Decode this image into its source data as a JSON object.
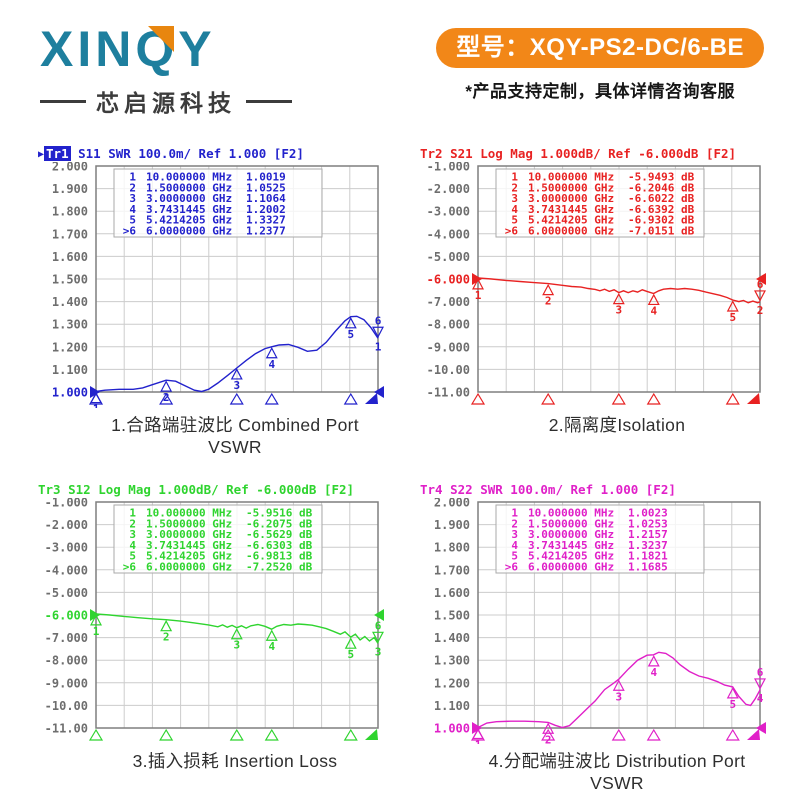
{
  "header": {
    "logo_text": "XINQY",
    "logo_subtitle": "芯启源科技",
    "model_badge": "型号：XQY-PS2-DC/6-BE",
    "note": "*产品支持定制，具体详情咨询客服"
  },
  "colors": {
    "logo_teal": "#1e7f9e",
    "logo_accent_orange": "#e8860f",
    "badge_orange": "#f28718",
    "trace1_blue": "#2222cc",
    "trace2_red": "#e82222",
    "trace3_green": "#2fd42f",
    "trace4_magenta": "#e020c8",
    "axis_label_gray": "#6e6e6e",
    "grid_gray": "#cccccc"
  },
  "chart_data": [
    {
      "type": "line",
      "header": {
        "active": true,
        "trace_label": "Tr1",
        "text": " S11 SWR 100.0m/ Ref 1.000 [F2]"
      },
      "caption": "1.合路端驻波比 Combined Port VSWR",
      "color": "#2222cc",
      "trace_number": "1",
      "x_range_ghz": [
        0.01,
        6
      ],
      "ylim": [
        1.0,
        2.0
      ],
      "ref_value": 1.0,
      "ref_index": 10,
      "y_ticks": [
        "2.000",
        "1.900",
        "1.800",
        "1.700",
        "1.600",
        "1.500",
        "1.400",
        "1.300",
        "1.200",
        "1.100",
        "1.000"
      ],
      "markers": [
        {
          "n": "1",
          "freq": "10.000000 MHz",
          "val": "1.0019",
          "f": 0.01,
          "y": 1.0019
        },
        {
          "n": "2",
          "freq": "1.5000000 GHz",
          "val": "1.0525",
          "f": 1.5,
          "y": 1.0525
        },
        {
          "n": "3",
          "freq": "3.0000000 GHz",
          "val": "1.1064",
          "f": 3.0,
          "y": 1.1064
        },
        {
          "n": "4",
          "freq": "3.7431445 GHz",
          "val": "1.2002",
          "f": 3.7431445,
          "y": 1.2002
        },
        {
          "n": "5",
          "freq": "5.4214205 GHz",
          "val": "1.3327",
          "f": 5.4214205,
          "y": 1.3327
        },
        {
          "n": ">6",
          "freq": "6.0000000 GHz",
          "val": "1.2377",
          "f": 6.0,
          "y": 1.2377
        }
      ],
      "points": [
        [
          0.01,
          1.002
        ],
        [
          0.2,
          1.008
        ],
        [
          0.5,
          1.012
        ],
        [
          0.8,
          1.012
        ],
        [
          1.0,
          1.018
        ],
        [
          1.2,
          1.032
        ],
        [
          1.5,
          1.052
        ],
        [
          1.7,
          1.048
        ],
        [
          1.9,
          1.028
        ],
        [
          2.1,
          1.008
        ],
        [
          2.25,
          1.002
        ],
        [
          2.4,
          1.012
        ],
        [
          2.6,
          1.04
        ],
        [
          2.8,
          1.072
        ],
        [
          3.0,
          1.106
        ],
        [
          3.2,
          1.14
        ],
        [
          3.4,
          1.17
        ],
        [
          3.6,
          1.192
        ],
        [
          3.74,
          1.2
        ],
        [
          3.9,
          1.208
        ],
        [
          4.1,
          1.21
        ],
        [
          4.3,
          1.198
        ],
        [
          4.5,
          1.18
        ],
        [
          4.7,
          1.185
        ],
        [
          4.9,
          1.22
        ],
        [
          5.1,
          1.27
        ],
        [
          5.3,
          1.315
        ],
        [
          5.42,
          1.333
        ],
        [
          5.55,
          1.335
        ],
        [
          5.7,
          1.32
        ],
        [
          5.85,
          1.285
        ],
        [
          6.0,
          1.238
        ]
      ]
    },
    {
      "type": "line",
      "header": {
        "active": false,
        "trace_label": "Tr2",
        "text": " S21 Log Mag 1.000dB/ Ref -6.000dB [F2]"
      },
      "caption": "2.隔离度Isolation",
      "color": "#e82222",
      "trace_number": "2",
      "x_range_ghz": [
        0.01,
        6
      ],
      "ylim": [
        -11.0,
        -1.0
      ],
      "ref_value": -6.0,
      "ref_index": 5,
      "y_ticks": [
        "-1.000",
        "-2.000",
        "-3.000",
        "-4.000",
        "-5.000",
        "-6.000",
        "-7.000",
        "-8.000",
        "-9.000",
        "-10.00",
        "-11.00"
      ],
      "markers": [
        {
          "n": "1",
          "freq": "10.000000 MHz",
          "val": "-5.9493 dB",
          "f": 0.01,
          "y": -5.9493
        },
        {
          "n": "2",
          "freq": "1.5000000 GHz",
          "val": "-6.2046 dB",
          "f": 1.5,
          "y": -6.2046
        },
        {
          "n": "3",
          "freq": "3.0000000 GHz",
          "val": "-6.6022 dB",
          "f": 3.0,
          "y": -6.6022
        },
        {
          "n": "4",
          "freq": "3.7431445 GHz",
          "val": "-6.6392 dB",
          "f": 3.7431445,
          "y": -6.6392
        },
        {
          "n": "5",
          "freq": "5.4214205 GHz",
          "val": "-6.9302 dB",
          "f": 5.4214205,
          "y": -6.9302
        },
        {
          "n": ">6",
          "freq": "6.0000000 GHz",
          "val": "-7.0151 dB",
          "f": 6.0,
          "y": -7.0151
        }
      ],
      "points": [
        [
          0.01,
          -5.95
        ],
        [
          0.3,
          -6.0
        ],
        [
          0.6,
          -6.06
        ],
        [
          0.9,
          -6.11
        ],
        [
          1.2,
          -6.16
        ],
        [
          1.5,
          -6.205
        ],
        [
          1.8,
          -6.28
        ],
        [
          2.0,
          -6.33
        ],
        [
          2.2,
          -6.36
        ],
        [
          2.35,
          -6.42
        ],
        [
          2.5,
          -6.46
        ],
        [
          2.6,
          -6.52
        ],
        [
          2.7,
          -6.45
        ],
        [
          2.8,
          -6.55
        ],
        [
          2.9,
          -6.48
        ],
        [
          3.0,
          -6.6
        ],
        [
          3.1,
          -6.52
        ],
        [
          3.2,
          -6.6
        ],
        [
          3.3,
          -6.52
        ],
        [
          3.4,
          -6.58
        ],
        [
          3.5,
          -6.48
        ],
        [
          3.6,
          -6.55
        ],
        [
          3.74,
          -6.64
        ],
        [
          3.85,
          -6.52
        ],
        [
          3.95,
          -6.45
        ],
        [
          4.1,
          -6.42
        ],
        [
          4.25,
          -6.45
        ],
        [
          4.4,
          -6.42
        ],
        [
          4.55,
          -6.45
        ],
        [
          4.7,
          -6.5
        ],
        [
          4.85,
          -6.58
        ],
        [
          5.0,
          -6.65
        ],
        [
          5.15,
          -6.72
        ],
        [
          5.3,
          -6.82
        ],
        [
          5.42,
          -6.93
        ],
        [
          5.55,
          -7.0
        ],
        [
          5.65,
          -6.95
        ],
        [
          5.75,
          -7.05
        ],
        [
          5.85,
          -6.98
        ],
        [
          5.95,
          -7.05
        ],
        [
          6.0,
          -7.015
        ]
      ]
    },
    {
      "type": "line",
      "header": {
        "active": false,
        "trace_label": "Tr3",
        "text": " S12 Log Mag 1.000dB/ Ref -6.000dB [F2]"
      },
      "caption": "3.插入损耗 Insertion Loss",
      "color": "#2fd42f",
      "trace_number": "3",
      "x_range_ghz": [
        0.01,
        6
      ],
      "ylim": [
        -11.0,
        -1.0
      ],
      "ref_value": -6.0,
      "ref_index": 5,
      "y_ticks": [
        "-1.000",
        "-2.000",
        "-3.000",
        "-4.000",
        "-5.000",
        "-6.000",
        "-7.000",
        "-8.000",
        "-9.000",
        "-10.00",
        "-11.00"
      ],
      "markers": [
        {
          "n": "1",
          "freq": "10.000000 MHz",
          "val": "-5.9516 dB",
          "f": 0.01,
          "y": -5.9516
        },
        {
          "n": "2",
          "freq": "1.5000000 GHz",
          "val": "-6.2075 dB",
          "f": 1.5,
          "y": -6.2075
        },
        {
          "n": "3",
          "freq": "3.0000000 GHz",
          "val": "-6.5629 dB",
          "f": 3.0,
          "y": -6.5629
        },
        {
          "n": "4",
          "freq": "3.7431445 GHz",
          "val": "-6.6303 dB",
          "f": 3.7431445,
          "y": -6.6303
        },
        {
          "n": "5",
          "freq": "5.4214205 GHz",
          "val": "-6.9813 dB",
          "f": 5.4214205,
          "y": -6.9813
        },
        {
          "n": ">6",
          "freq": "6.0000000 GHz",
          "val": "-7.2520 dB",
          "f": 6.0,
          "y": -7.252
        }
      ],
      "points": [
        [
          0.01,
          -5.952
        ],
        [
          0.3,
          -6.0
        ],
        [
          0.6,
          -6.06
        ],
        [
          0.9,
          -6.12
        ],
        [
          1.2,
          -6.17
        ],
        [
          1.5,
          -6.208
        ],
        [
          1.8,
          -6.27
        ],
        [
          2.1,
          -6.35
        ],
        [
          2.4,
          -6.44
        ],
        [
          2.6,
          -6.52
        ],
        [
          2.7,
          -6.44
        ],
        [
          2.8,
          -6.54
        ],
        [
          2.9,
          -6.46
        ],
        [
          3.0,
          -6.56
        ],
        [
          3.1,
          -6.48
        ],
        [
          3.2,
          -6.58
        ],
        [
          3.3,
          -6.48
        ],
        [
          3.45,
          -6.42
        ],
        [
          3.6,
          -6.5
        ],
        [
          3.74,
          -6.63
        ],
        [
          3.85,
          -6.5
        ],
        [
          4.0,
          -6.42
        ],
        [
          4.15,
          -6.45
        ],
        [
          4.3,
          -6.4
        ],
        [
          4.45,
          -6.42
        ],
        [
          4.6,
          -6.45
        ],
        [
          4.75,
          -6.52
        ],
        [
          4.9,
          -6.6
        ],
        [
          5.05,
          -6.72
        ],
        [
          5.2,
          -6.85
        ],
        [
          5.3,
          -6.75
        ],
        [
          5.42,
          -6.98
        ],
        [
          5.52,
          -6.85
        ],
        [
          5.62,
          -7.1
        ],
        [
          5.72,
          -6.95
        ],
        [
          5.82,
          -7.15
        ],
        [
          5.92,
          -7.0
        ],
        [
          6.0,
          -7.252
        ]
      ]
    },
    {
      "type": "line",
      "header": {
        "active": false,
        "trace_label": "Tr4",
        "text": " S22 SWR 100.0m/ Ref 1.000 [F2]"
      },
      "caption": "4.分配端驻波比 Distribution Port VSWR",
      "color": "#e020c8",
      "trace_number": "4",
      "x_range_ghz": [
        0.01,
        6
      ],
      "ylim": [
        1.0,
        2.0
      ],
      "ref_value": 1.0,
      "ref_index": 10,
      "y_ticks": [
        "2.000",
        "1.900",
        "1.800",
        "1.700",
        "1.600",
        "1.500",
        "1.400",
        "1.300",
        "1.200",
        "1.100",
        "1.000"
      ],
      "markers": [
        {
          "n": "1",
          "freq": "10.000000 MHz",
          "val": "1.0023",
          "f": 0.01,
          "y": 1.0023
        },
        {
          "n": "2",
          "freq": "1.5000000 GHz",
          "val": "1.0253",
          "f": 1.5,
          "y": 1.0253
        },
        {
          "n": "3",
          "freq": "3.0000000 GHz",
          "val": "1.2157",
          "f": 3.0,
          "y": 1.2157
        },
        {
          "n": "4",
          "freq": "3.7431445 GHz",
          "val": "1.3237",
          "f": 3.7431445,
          "y": 1.3237
        },
        {
          "n": "5",
          "freq": "5.4214205 GHz",
          "val": "1.1821",
          "f": 5.4214205,
          "y": 1.1821
        },
        {
          "n": ">6",
          "freq": "6.0000000 GHz",
          "val": "1.1685",
          "f": 6.0,
          "y": 1.1685
        }
      ],
      "points": [
        [
          0.01,
          1.002
        ],
        [
          0.2,
          1.022
        ],
        [
          0.4,
          1.028
        ],
        [
          0.7,
          1.03
        ],
        [
          1.0,
          1.03
        ],
        [
          1.3,
          1.028
        ],
        [
          1.5,
          1.025
        ],
        [
          1.65,
          1.012
        ],
        [
          1.8,
          1.002
        ],
        [
          1.95,
          1.01
        ],
        [
          2.1,
          1.04
        ],
        [
          2.3,
          1.08
        ],
        [
          2.5,
          1.12
        ],
        [
          2.7,
          1.17
        ],
        [
          2.9,
          1.2
        ],
        [
          3.0,
          1.216
        ],
        [
          3.2,
          1.26
        ],
        [
          3.4,
          1.3
        ],
        [
          3.6,
          1.322
        ],
        [
          3.74,
          1.324
        ],
        [
          3.85,
          1.335
        ],
        [
          4.0,
          1.33
        ],
        [
          4.15,
          1.31
        ],
        [
          4.3,
          1.28
        ],
        [
          4.5,
          1.25
        ],
        [
          4.7,
          1.23
        ],
        [
          4.9,
          1.22
        ],
        [
          5.1,
          1.205
        ],
        [
          5.25,
          1.19
        ],
        [
          5.42,
          1.182
        ],
        [
          5.55,
          1.14
        ],
        [
          5.7,
          1.105
        ],
        [
          5.8,
          1.1
        ],
        [
          5.9,
          1.13
        ],
        [
          6.0,
          1.168
        ]
      ]
    }
  ]
}
